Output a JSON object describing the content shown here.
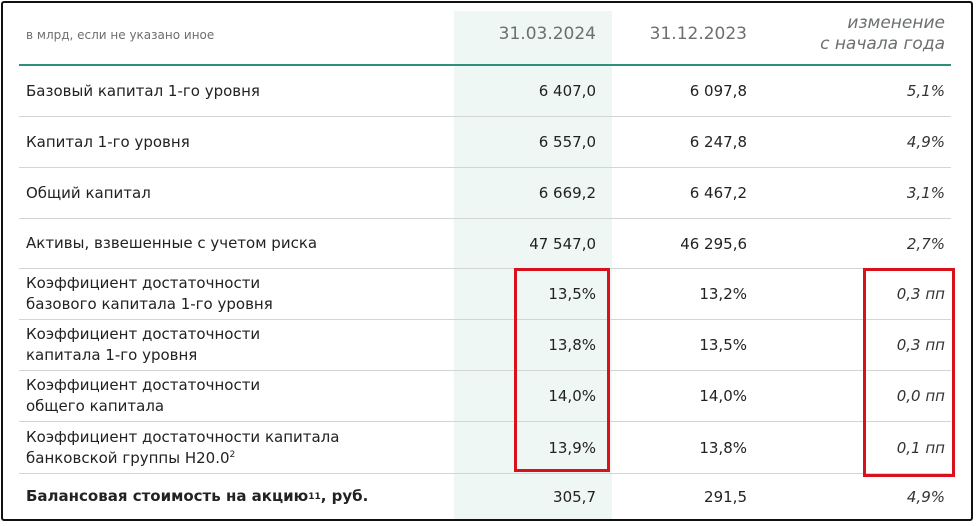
{
  "header": {
    "units_note": "в млрд, если не указано иное",
    "col1": "31.03.2024",
    "col2": "31.12.2023",
    "col3_line1": "изменение",
    "col3_line2": "с начала года"
  },
  "rows": [
    {
      "label": "Базовый капитал 1-го уровня",
      "v1": "6 407,0",
      "v2": "6 097,8",
      "change": "5,1%"
    },
    {
      "label": "Капитал 1-го уровня",
      "v1": "6 557,0",
      "v2": "6 247,8",
      "change": "4,9%"
    },
    {
      "label": "Общий капитал",
      "v1": "6 669,2",
      "v2": "6 467,2",
      "change": "3,1%"
    },
    {
      "label": "Активы, взвешенные с учетом риска",
      "v1": "47 547,0",
      "v2": "46 295,6",
      "change": "2,7%"
    },
    {
      "label_line1": "Коэффициент достаточности",
      "label_line2": "базового капитала 1-го уровня",
      "v1": "13,5%",
      "v2": "13,2%",
      "change": "0,3 пп"
    },
    {
      "label_line1": "Коэффициент достаточности",
      "label_line2": "капитала 1-го уровня",
      "v1": "13,8%",
      "v2": "13,5%",
      "change": "0,3 пп"
    },
    {
      "label_line1": "Коэффициент достаточности",
      "label_line2": "общего капитала",
      "v1": "14,0%",
      "v2": "14,0%",
      "change": "0,0 пп"
    },
    {
      "label_line1": "Коэффициент достаточности капитала",
      "label_line2": "банковской группы Н20.0",
      "label_sup": "2",
      "v1": "13,9%",
      "v2": "13,8%",
      "change": "0,1 пп"
    },
    {
      "label": "Балансовая стоимость на акцию",
      "label_sup": "11",
      "label_suffix": ", руб.",
      "v1": "305,7",
      "v2": "291,5",
      "change": "4,9%"
    }
  ],
  "colors": {
    "accent_line": "#2e8f7b",
    "highlight_column": "#eef7f3",
    "annotation_red": "#d8111d"
  }
}
